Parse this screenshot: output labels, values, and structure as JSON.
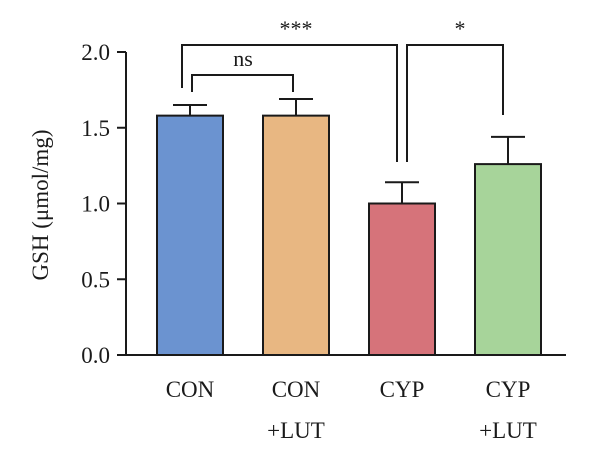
{
  "chart_data": {
    "type": "bar",
    "ylabel": "GSH (μmol/mg)",
    "ylim": [
      0,
      2.0
    ],
    "yticks": [
      "0.0",
      "0.5",
      "1.0",
      "1.5",
      "2.0"
    ],
    "categories": [
      {
        "line1": "CON",
        "line2": ""
      },
      {
        "line1": "CON",
        "line2": "+LUT"
      },
      {
        "line1": "CYP",
        "line2": ""
      },
      {
        "line1": "CYP",
        "line2": "+LUT"
      }
    ],
    "values": [
      1.58,
      1.58,
      1.0,
      1.26
    ],
    "errors": [
      0.07,
      0.11,
      0.14,
      0.18
    ],
    "colors": [
      "#6b93d0",
      "#e8b782",
      "#d6737a",
      "#a7d49a"
    ],
    "significance": [
      {
        "from": 0,
        "to": 2,
        "label": "***"
      },
      {
        "from": 0,
        "to": 1,
        "label": "ns"
      },
      {
        "from": 2,
        "to": 3,
        "label": "*"
      }
    ]
  }
}
